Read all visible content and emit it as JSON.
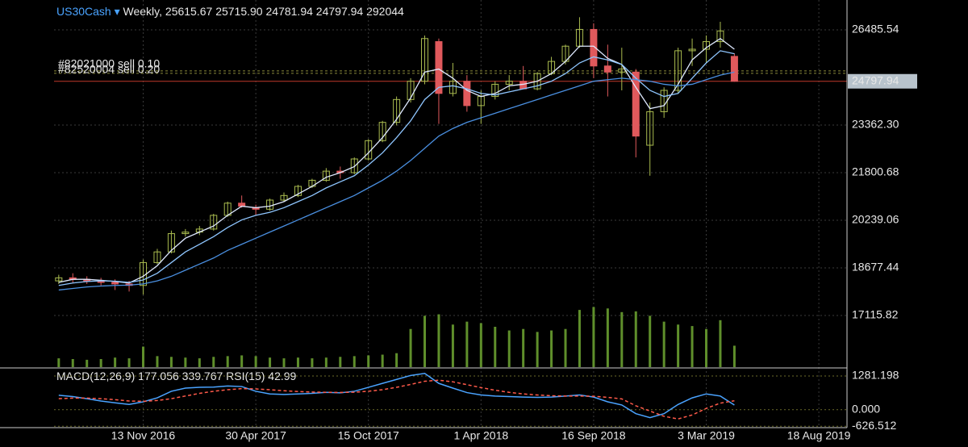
{
  "header": {
    "symbol": "US30Cash",
    "timeframe": "Weekly,",
    "ohlcv": [
      "25615.67",
      "25715.90",
      "24781.94",
      "24797.94",
      "292044"
    ]
  },
  "chart_data": [
    {
      "type": "candlestick",
      "x": [
        1,
        4,
        7,
        10,
        13,
        16,
        19,
        22,
        25,
        28,
        31,
        34,
        37,
        40,
        43,
        46,
        49,
        52,
        55,
        58,
        61,
        64,
        67,
        70,
        73,
        76,
        79,
        82,
        85,
        88,
        91,
        94,
        97,
        100,
        103,
        106,
        109,
        112,
        115,
        118,
        121,
        124,
        127,
        130,
        133,
        136,
        139,
        142,
        145
      ],
      "open": [
        18250,
        18350,
        18300,
        18250,
        18200,
        18150,
        18100,
        18850,
        19200,
        19800,
        19850,
        19950,
        20400,
        20800,
        20650,
        20600,
        20900,
        21050,
        21350,
        21550,
        21850,
        21800,
        22250,
        22850,
        23450,
        24200,
        24800,
        26100,
        24400,
        24800,
        24000,
        24300,
        24700,
        24800,
        24550,
        25050,
        25450,
        25950,
        26500,
        25300,
        25100,
        25100,
        22700,
        23800,
        24500,
        25800,
        25850,
        26100,
        25615.67
      ],
      "high": [
        18450,
        18500,
        18400,
        18350,
        18300,
        18250,
        18950,
        19300,
        19900,
        19950,
        20050,
        20450,
        20850,
        21050,
        20750,
        20950,
        21150,
        21400,
        21600,
        21950,
        22000,
        22300,
        22900,
        23500,
        24300,
        24900,
        26300,
        26200,
        25400,
        25000,
        24500,
        24800,
        25000,
        25300,
        25100,
        25600,
        26000,
        26900,
        26700,
        26000,
        25900,
        25200,
        24100,
        24600,
        25900,
        26200,
        26300,
        26750,
        25715.9
      ],
      "low": [
        18150,
        18200,
        18150,
        18100,
        17950,
        17900,
        17800,
        18800,
        19150,
        19700,
        19750,
        19900,
        20350,
        20650,
        20400,
        20550,
        20850,
        21000,
        21300,
        21500,
        21600,
        21750,
        22200,
        22800,
        23350,
        24100,
        24700,
        23400,
        24300,
        23800,
        23400,
        24200,
        24500,
        24600,
        24500,
        25000,
        25350,
        25900,
        24900,
        24300,
        24500,
        22300,
        21700,
        23600,
        24400,
        25300,
        25400,
        25900,
        24781.94
      ],
      "close": [
        18350,
        18300,
        18250,
        18200,
        18150,
        18100,
        18850,
        19200,
        19800,
        19850,
        19950,
        20400,
        20800,
        20700,
        20600,
        20900,
        21050,
        21350,
        21550,
        21850,
        21800,
        22250,
        22850,
        23450,
        24200,
        24800,
        26200,
        24400,
        24800,
        24000,
        24300,
        24700,
        24800,
        24550,
        25050,
        25450,
        25950,
        26500,
        25300,
        25100,
        25200,
        23000,
        23800,
        24500,
        25800,
        25850,
        26100,
        26450,
        24797.94
      ],
      "volume": [
        120000,
        110000,
        100000,
        110000,
        130000,
        120000,
        280000,
        150000,
        140000,
        130000,
        120000,
        140000,
        150000,
        160000,
        150000,
        130000,
        120000,
        130000,
        120000,
        130000,
        140000,
        150000,
        160000,
        170000,
        190000,
        520000,
        700000,
        720000,
        580000,
        620000,
        600000,
        550000,
        500000,
        520000,
        480000,
        500000,
        520000,
        780000,
        820000,
        800000,
        750000,
        760000,
        700000,
        620000,
        580000,
        560000,
        520000,
        640000,
        292044
      ],
      "volume_ylim": [
        0,
        1100000
      ],
      "up_color": "#a9bb4f",
      "down_color": "#e0595c",
      "volume_color": "#5f8f2b",
      "ma": [
        {
          "color": "#dfe9ff",
          "values": [
            18200,
            18300,
            18300,
            18270,
            18230,
            18180,
            18400,
            18750,
            19250,
            19650,
            19850,
            20050,
            20400,
            20700,
            20650,
            20700,
            20850,
            21100,
            21350,
            21650,
            21800,
            22000,
            22450,
            22950,
            23550,
            24250,
            25100,
            25200,
            24900,
            24500,
            24300,
            24400,
            24650,
            24700,
            24800,
            25050,
            25450,
            25950,
            25950,
            25550,
            25350,
            24600,
            23900,
            24000,
            24700,
            25500,
            25900,
            26200,
            25850
          ]
        },
        {
          "color": "#8fc6ff",
          "values": [
            18100,
            18180,
            18230,
            18250,
            18240,
            18200,
            18280,
            18500,
            18850,
            19200,
            19450,
            19700,
            20000,
            20250,
            20400,
            20500,
            20650,
            20850,
            21050,
            21300,
            21500,
            21700,
            22050,
            22450,
            22950,
            23500,
            24200,
            24600,
            24650,
            24550,
            24400,
            24350,
            24450,
            24550,
            24650,
            24800,
            25050,
            25400,
            25600,
            25500,
            25350,
            24900,
            24500,
            24300,
            24400,
            24900,
            25400,
            25800,
            25700
          ]
        },
        {
          "color": "#4a8fe0",
          "values": [
            17950,
            18000,
            18050,
            18080,
            18100,
            18110,
            18150,
            18250,
            18400,
            18600,
            18800,
            19000,
            19250,
            19450,
            19650,
            19850,
            20050,
            20250,
            20450,
            20650,
            20850,
            21050,
            21300,
            21550,
            21850,
            22200,
            22600,
            23000,
            23250,
            23450,
            23600,
            23750,
            23900,
            24050,
            24200,
            24350,
            24500,
            24650,
            24800,
            24850,
            24900,
            24850,
            24800,
            24700,
            24650,
            24700,
            24850,
            25000,
            25100
          ]
        }
      ],
      "orders": [
        {
          "label": "#82021000 sell 0.10",
          "price": 25140
        },
        {
          "label": "#82520004 sell 0.20",
          "price": 25060
        }
      ],
      "xlim": [
        0,
        169
      ],
      "ylim": [
        15420,
        27465
      ],
      "yticks": [
        26485.54,
        {
          "value": 23362.3,
          "label": "23362.30"
        },
        21800.68,
        20239.06,
        18677.44,
        17115.82
      ],
      "xticks": [
        {
          "value": 19,
          "label": "13 Nov 2016"
        },
        {
          "value": 43,
          "label": "30 Apr 2017"
        },
        {
          "value": 67,
          "label": "15 Oct 2017"
        },
        {
          "value": 91,
          "label": "1 Apr 2018"
        },
        {
          "value": 115,
          "label": "16 Sep 2018"
        },
        {
          "value": 139,
          "label": "3 Mar 2019"
        },
        {
          "value": 163,
          "label": "18 Aug 2019"
        }
      ],
      "grid": true
    },
    {
      "type": "macd",
      "indicator": "MACD(12,26,9)",
      "rsi_label": "RSI(15)",
      "rsi_value": 42.99,
      "series": [
        {
          "color": "#4aa3ff",
          "dashed": false,
          "values": [
            550,
            500,
            420,
            330,
            260,
            200,
            300,
            450,
            700,
            820,
            850,
            860,
            900,
            880,
            700,
            600,
            580,
            600,
            620,
            660,
            640,
            700,
            850,
            1000,
            1150,
            1300,
            1380,
            1000,
            820,
            650,
            560,
            520,
            500,
            480,
            470,
            480,
            520,
            560,
            480,
            300,
            180,
            -150,
            -300,
            -150,
            200,
            450,
            600,
            520,
            177.056
          ]
        },
        {
          "color": "#ff5a4a",
          "dashed": true,
          "values": [
            420,
            440,
            440,
            420,
            380,
            330,
            320,
            350,
            420,
            520,
            620,
            700,
            760,
            800,
            790,
            760,
            720,
            690,
            670,
            660,
            655,
            665,
            700,
            760,
            850,
            960,
            1080,
            1120,
            1060,
            950,
            840,
            740,
            660,
            600,
            560,
            530,
            520,
            520,
            510,
            470,
            410,
            150,
            -50,
            -250,
            -350,
            -200,
            50,
            250,
            339.767
          ]
        }
      ],
      "ylim": [
        -680,
        1525
      ],
      "yticks": [
        1281.198,
        {
          "value": 0,
          "label": "0.000"
        },
        -626.512
      ]
    }
  ]
}
